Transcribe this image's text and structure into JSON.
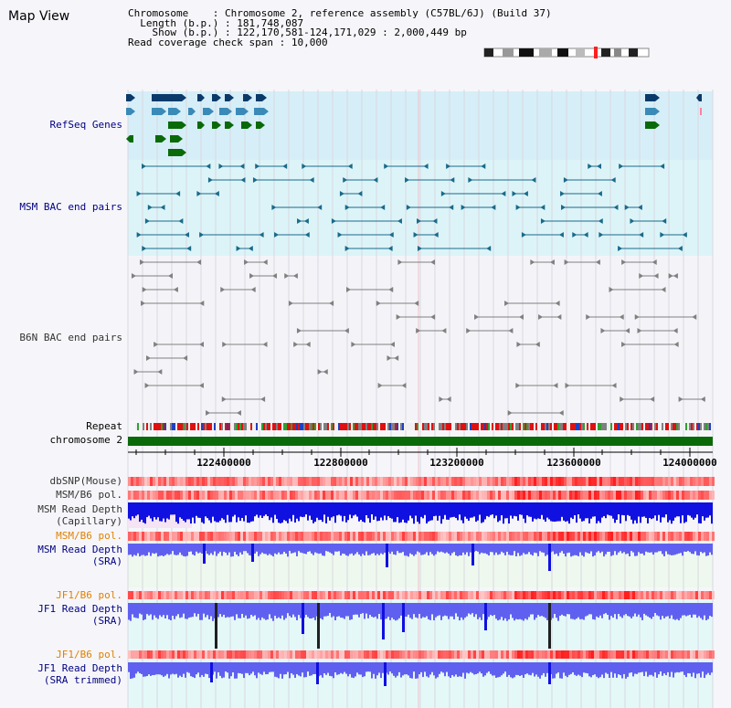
{
  "page": {
    "title": "Map View"
  },
  "info": {
    "chromosome_label": "Chromosome",
    "chromosome_value": "Chromosome 2, reference assembly (C57BL/6J) (Build 37)",
    "length_label": "Length (b.p.)",
    "length_value": "181,748,087",
    "show_label": "Show (b.p.)",
    "show_value": "122,170,581-124,171,029 : 2,000,449 bp",
    "coverage_label": "Read coverage check span",
    "coverage_value": "10,000"
  },
  "tracks": {
    "refseq": "RefSeq Genes",
    "msm_bac": "MSM BAC end pairs",
    "b6n_bac": "B6N BAC end pairs",
    "repeat": "Repeat",
    "chromosome": "chromosome 2",
    "dbsnp": "dbSNP(Mouse)",
    "msm_b6_pol_1": "MSM/B6 pol.",
    "msm_read_depth_cap_1": "MSM Read Depth",
    "msm_read_depth_cap_2": "(Capillary)",
    "msm_b6_pol_2": "MSM/B6 pol.",
    "msm_read_depth_sra_1": "MSM Read Depth",
    "msm_read_depth_sra_2": "(SRA)",
    "jf1_b6_pol_1": "JF1/B6 pol.",
    "jf1_read_depth_sra_1": "JF1 Read Depth",
    "jf1_read_depth_sra_2": "(SRA)",
    "jf1_b6_pol_2": "JF1/B6 pol.",
    "jf1_read_depth_trim_1": "JF1 Read Depth",
    "jf1_read_depth_trim_2": "(SRA trimmed)"
  },
  "axis": {
    "ticks": [
      "122400000",
      "122800000",
      "123200000",
      "123600000",
      "124000000"
    ]
  },
  "colors": {
    "refseq_bg": "#d6eef8",
    "msm_bg": "#dcf4f8",
    "b6n_bg": "#f4f4f8",
    "gene_dark": "#0a3a6a",
    "gene_mid": "#3a8ab8",
    "gene_green": "#0a6a0a",
    "msm_pair": "#1a6a8a",
    "b6n_pair": "#808080",
    "chromosome_bar": "#0a6a0a",
    "label_blue": "#000080",
    "label_orange": "#e08000",
    "depth_blue": "#1010e0",
    "depth_light": "#6060f0"
  }
}
